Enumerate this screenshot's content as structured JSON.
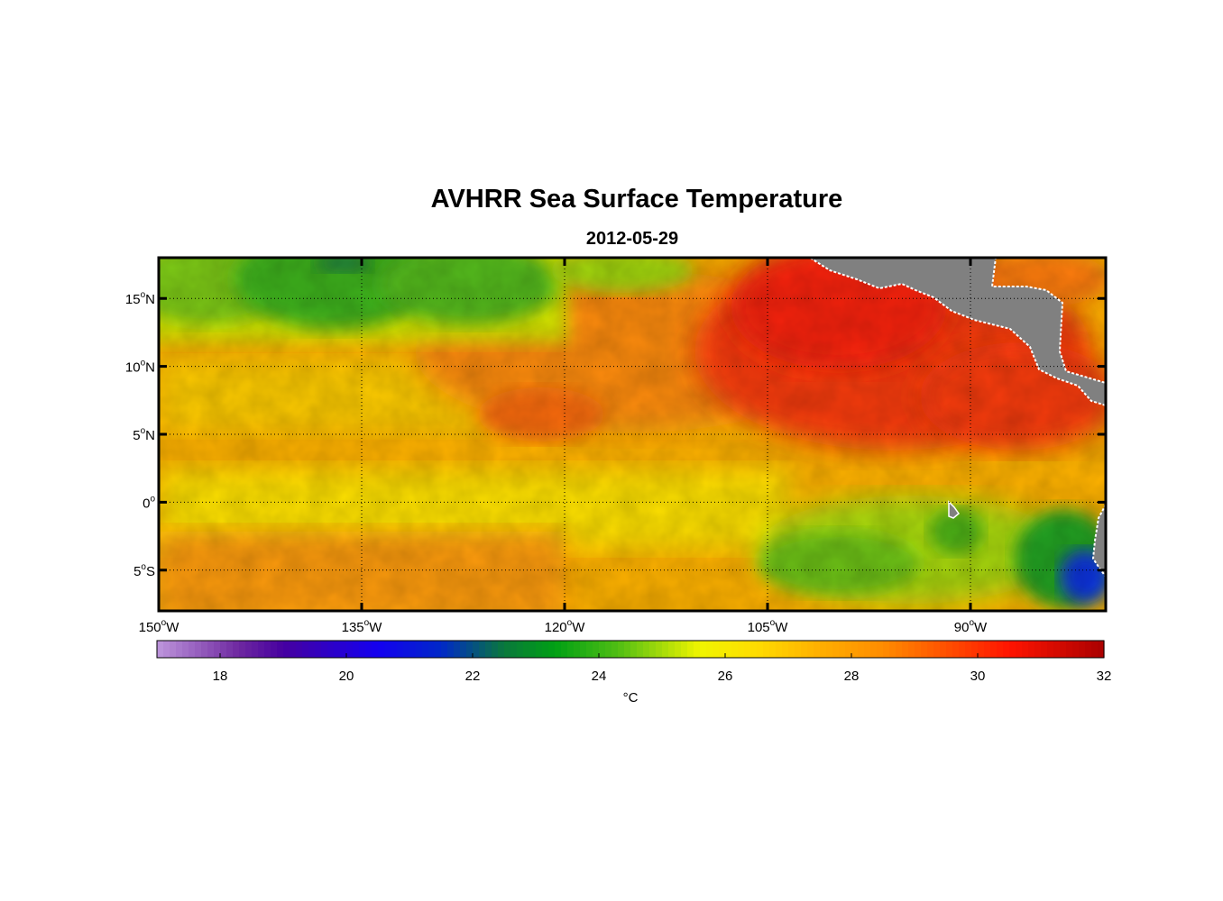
{
  "title": "AVHRR Sea Surface Temperature",
  "subtitle": "2012-05-29",
  "map": {
    "lat_ticks": [
      {
        "lat": 15,
        "label": "15",
        "hemi": "N"
      },
      {
        "lat": 10,
        "label": "10",
        "hemi": "N"
      },
      {
        "lat": 5,
        "label": "5",
        "hemi": "N"
      },
      {
        "lat": 0,
        "label": "0",
        "hemi": ""
      },
      {
        "lat": -5,
        "label": "5",
        "hemi": "S"
      }
    ],
    "lon_ticks": [
      {
        "lon": -150,
        "label": "150",
        "hemi": "W"
      },
      {
        "lon": -135,
        "label": "135",
        "hemi": "W"
      },
      {
        "lon": -120,
        "label": "120",
        "hemi": "W"
      },
      {
        "lon": -105,
        "label": "105",
        "hemi": "W"
      },
      {
        "lon": -90,
        "label": "90",
        "hemi": "W"
      }
    ]
  },
  "colorbar": {
    "min": 17,
    "max": 32,
    "ticks": [
      "18",
      "20",
      "22",
      "24",
      "26",
      "28",
      "30",
      "32"
    ],
    "unit": "°C"
  },
  "colors": {
    "land": "#808080",
    "frame": "#000000"
  }
}
